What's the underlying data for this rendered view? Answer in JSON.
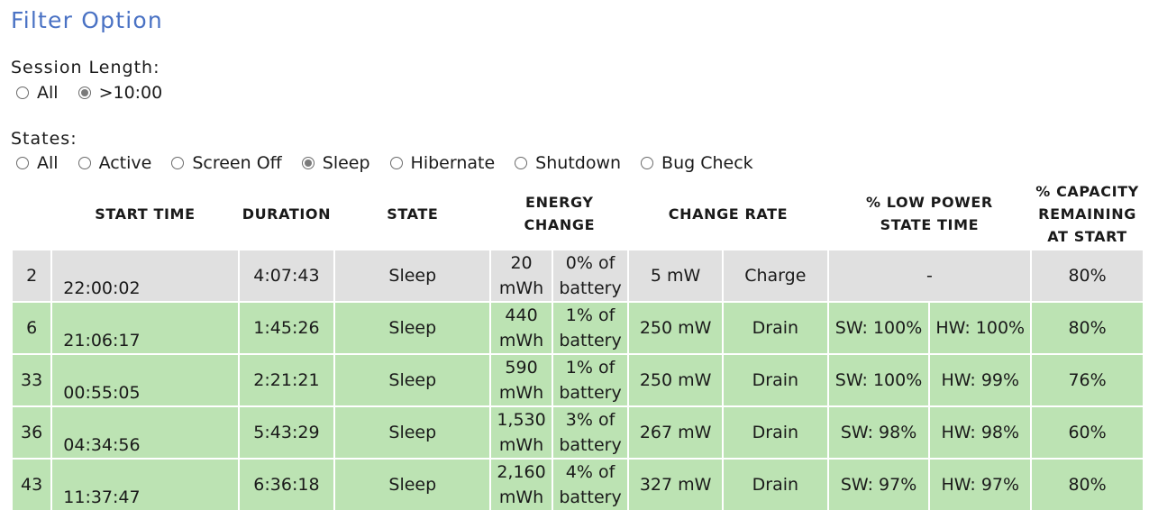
{
  "title": "Filter Option",
  "session_length": {
    "label": "Session Length:",
    "options": [
      {
        "label": "All",
        "checked": false
      },
      {
        "label": ">10:00",
        "checked": true
      }
    ]
  },
  "states": {
    "label": "States:",
    "options": [
      {
        "label": "All",
        "checked": false
      },
      {
        "label": "Active",
        "checked": false
      },
      {
        "label": "Screen Off",
        "checked": false
      },
      {
        "label": "Sleep",
        "checked": true
      },
      {
        "label": "Hibernate",
        "checked": false
      },
      {
        "label": "Shutdown",
        "checked": false
      },
      {
        "label": "Bug Check",
        "checked": false
      }
    ]
  },
  "table": {
    "headers": {
      "start_time": "START TIME",
      "duration": "DURATION",
      "state": "STATE",
      "energy_change": "ENERGY CHANGE",
      "change_rate": "CHANGE RATE",
      "low_power": "% LOW POWER STATE TIME",
      "capacity": "% CAPACITY REMAINING AT START"
    },
    "rows": [
      {
        "id": "2",
        "start": "22:00:02",
        "duration": "4:07:43",
        "state": "Sleep",
        "energy_val": "20",
        "energy_unit": "mWh",
        "energy_pct": "0% of",
        "energy_pct2": "battery",
        "rate": "5 mW",
        "direction": "Charge",
        "sw": "-",
        "hw": "",
        "capacity": "80%",
        "color": "gray"
      },
      {
        "id": "6",
        "start": "21:06:17",
        "duration": "1:45:26",
        "state": "Sleep",
        "energy_val": "440",
        "energy_unit": "mWh",
        "energy_pct": "1% of",
        "energy_pct2": "battery",
        "rate": "250 mW",
        "direction": "Drain",
        "sw": "SW: 100%",
        "hw": "HW: 100%",
        "capacity": "80%",
        "color": "green"
      },
      {
        "id": "33",
        "start": "00:55:05",
        "duration": "2:21:21",
        "state": "Sleep",
        "energy_val": "590",
        "energy_unit": "mWh",
        "energy_pct": "1% of",
        "energy_pct2": "battery",
        "rate": "250 mW",
        "direction": "Drain",
        "sw": "SW: 100%",
        "hw": "HW: 99%",
        "capacity": "76%",
        "color": "green"
      },
      {
        "id": "36",
        "start": "04:34:56",
        "duration": "5:43:29",
        "state": "Sleep",
        "energy_val": "1,530",
        "energy_unit": "mWh",
        "energy_pct": "3% of",
        "energy_pct2": "battery",
        "rate": "267 mW",
        "direction": "Drain",
        "sw": "SW: 98%",
        "hw": "HW: 98%",
        "capacity": "60%",
        "color": "green"
      },
      {
        "id": "43",
        "start": "11:37:47",
        "duration": "6:36:18",
        "state": "Sleep",
        "energy_val": "2,160",
        "energy_unit": "mWh",
        "energy_pct": "4% of",
        "energy_pct2": "battery",
        "rate": "327 mW",
        "direction": "Drain",
        "sw": "SW: 97%",
        "hw": "HW: 97%",
        "capacity": "80%",
        "color": "green"
      }
    ]
  }
}
